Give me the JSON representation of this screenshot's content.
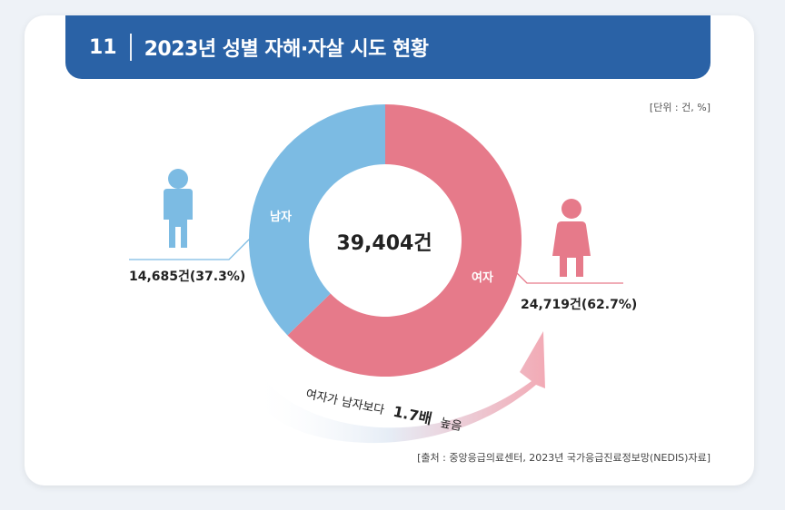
{
  "header": {
    "number": "11",
    "title": "2023년 성별 자해·자살 시도 현황"
  },
  "unit_note": "[단위 : 건, %]",
  "source_note": "[출처 : 중앙응급의료센터, 2023년 국가응급진료정보망(NEDIS)자료]",
  "chart_data": {
    "type": "pie",
    "style": "donut",
    "title": "2023년 성별 자해·자살 시도 현황",
    "total_label": "39,404건",
    "total": 39404,
    "slices": [
      {
        "name": "여자",
        "value": 24719,
        "percent": 62.7,
        "value_label": "24,719건(62.7%)",
        "color": "#e67a8a"
      },
      {
        "name": "남자",
        "value": 14685,
        "percent": 37.3,
        "value_label": "14,685건(37.3%)",
        "color": "#7cbbe3"
      }
    ],
    "annotation": {
      "prefix": "여자가 남자보다",
      "emphasis": "1.7배",
      "suffix": "높음"
    }
  },
  "colors": {
    "header_bg": "#2a62a6",
    "male": "#7cbbe3",
    "female": "#e67a8a",
    "arrow": "#f1b9c2"
  }
}
